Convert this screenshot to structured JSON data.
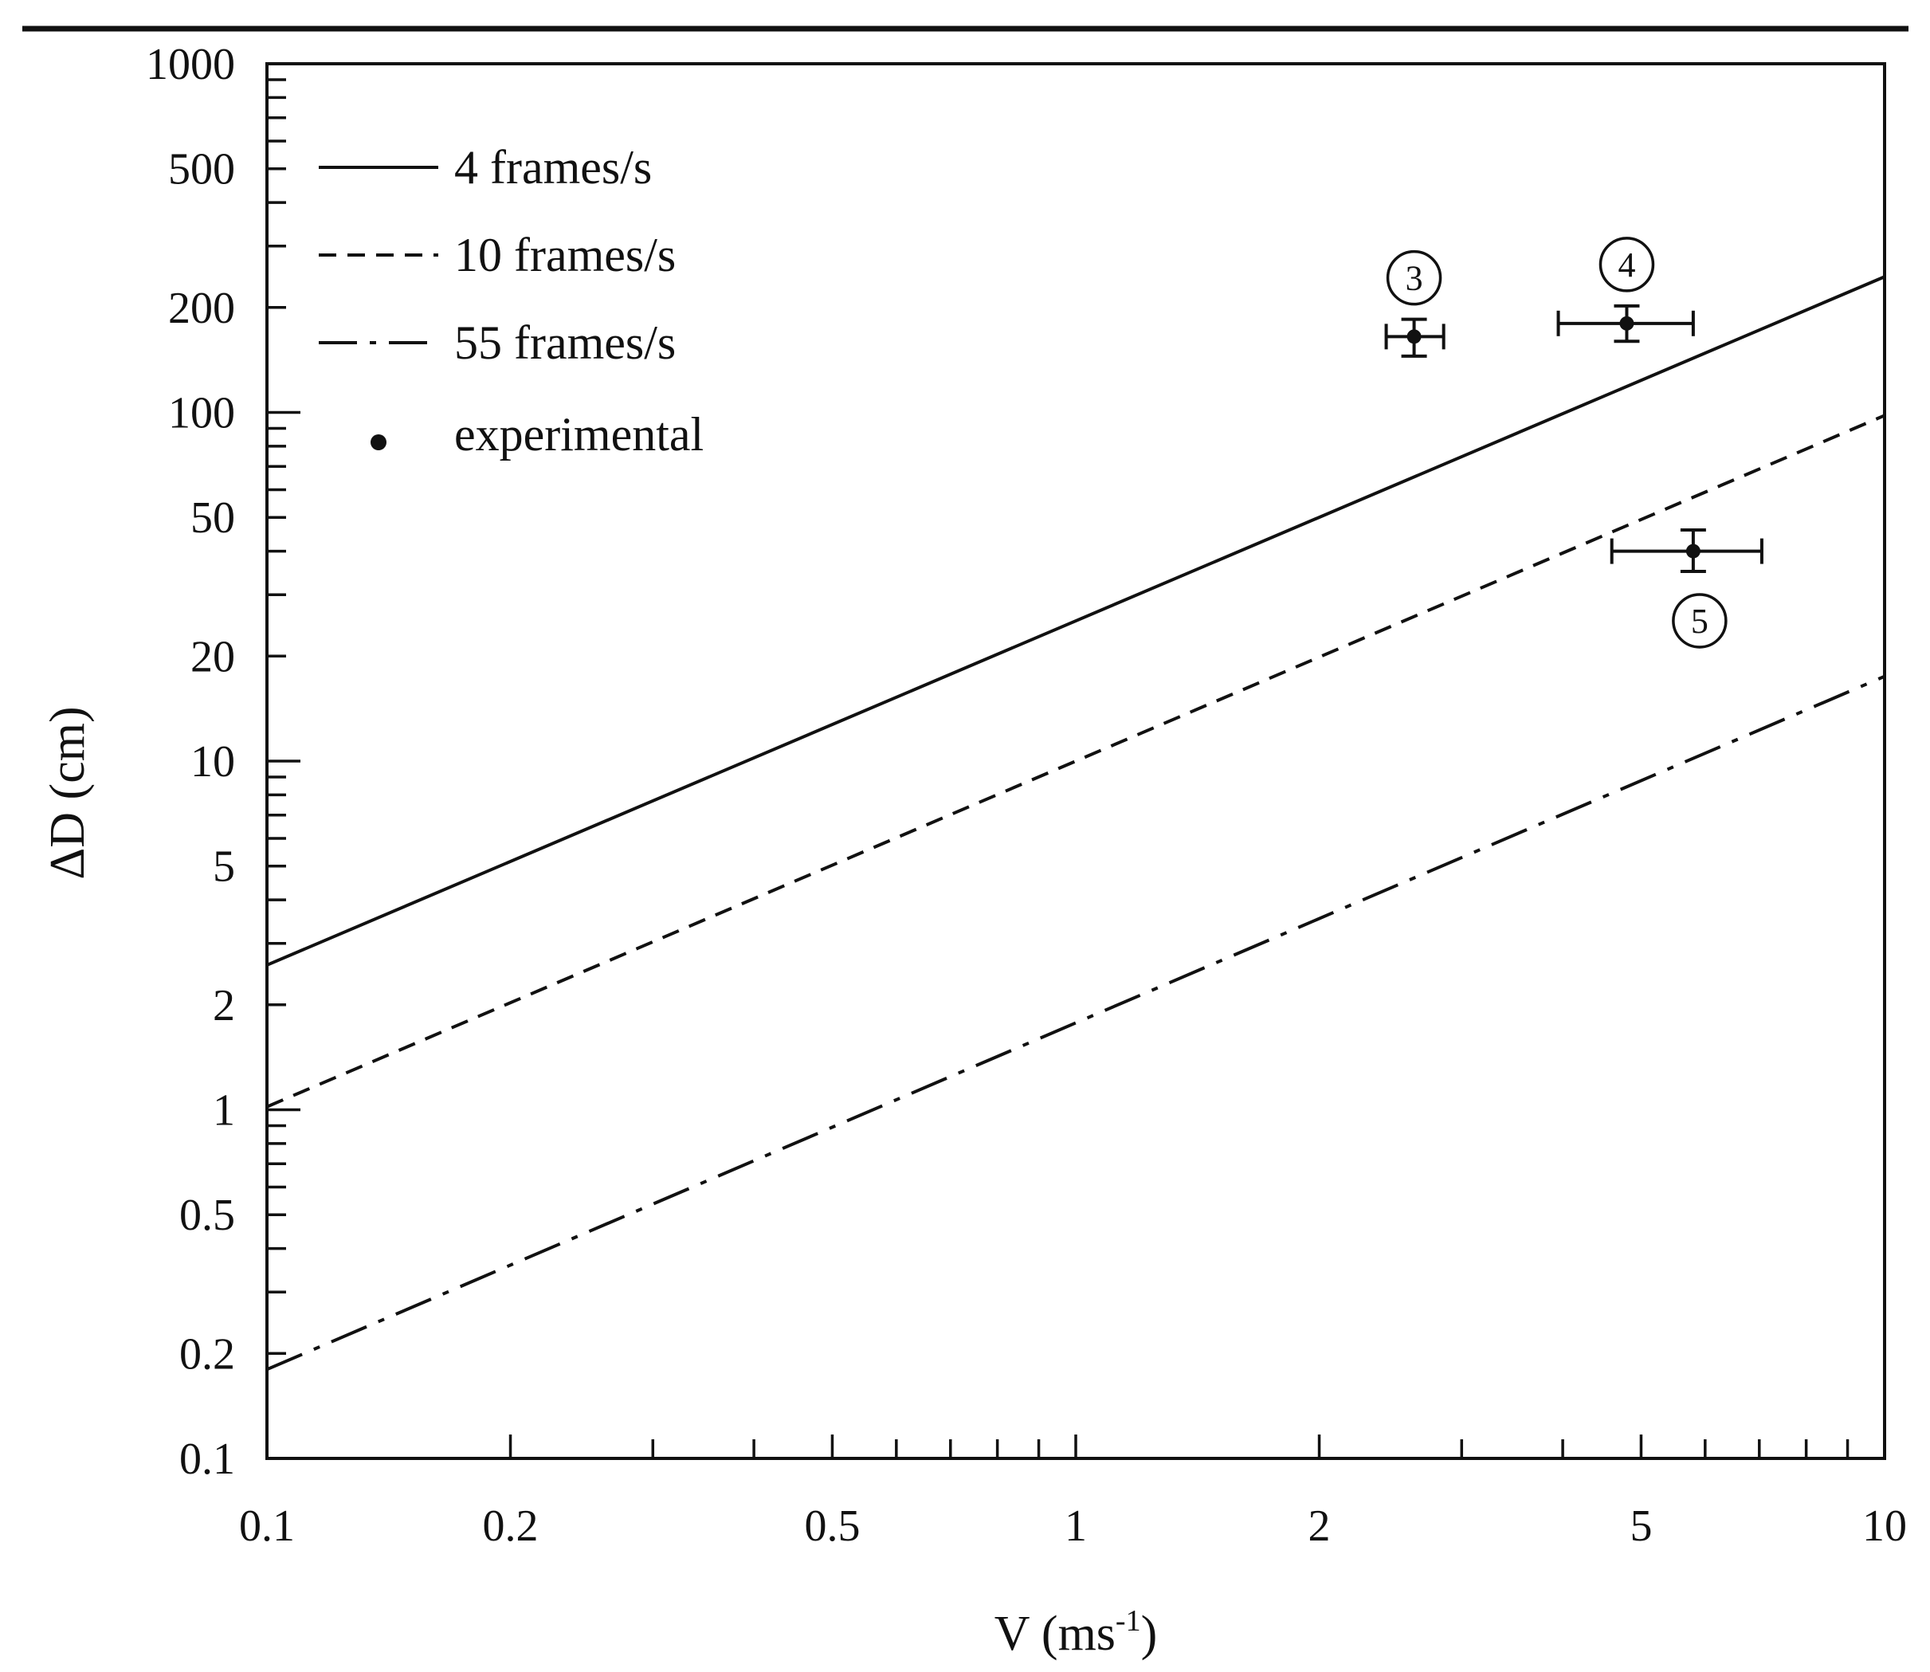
{
  "chart_data": {
    "type": "line",
    "title": "",
    "xlabel": "V (ms",
    "xlabel_sup": "-1",
    "xlabel_close": ")",
    "ylabel": "ΔD (cm)",
    "xscale": "log",
    "yscale": "log",
    "xlim": [
      0.1,
      10
    ],
    "ylim": [
      0.1,
      1000
    ],
    "xticks": [
      0.1,
      0.2,
      0.5,
      1,
      2,
      5,
      10
    ],
    "xtick_labels": [
      "0.1",
      "0.2",
      "0.5",
      "1",
      "2",
      "5",
      "10"
    ],
    "yticks": [
      0.1,
      0.2,
      0.5,
      1,
      2,
      5,
      10,
      20,
      50,
      100,
      200,
      500,
      1000
    ],
    "ytick_labels": [
      "0.1",
      "0.2",
      "0.5",
      "1",
      "2",
      "5",
      "10",
      "20",
      "50",
      "100",
      "200",
      "500",
      "1000"
    ],
    "grid": false,
    "legend_position": "top-left",
    "series": [
      {
        "name": "4 frames/s",
        "style": "solid",
        "x": [
          0.1,
          10
        ],
        "y": [
          2.6,
          245
        ]
      },
      {
        "name": "10 frames/s",
        "style": "dashed",
        "x": [
          0.1,
          10
        ],
        "y": [
          1.02,
          98
        ]
      },
      {
        "name": "55 frames/s",
        "style": "dashdot",
        "x": [
          0.1,
          10
        ],
        "y": [
          0.18,
          17.5
        ]
      }
    ],
    "experimental": {
      "name": "experimental",
      "points": [
        {
          "label": "3",
          "x": 2.62,
          "y": 165,
          "xerr": [
            2.42,
            2.85
          ],
          "yerr": [
            145,
            185
          ],
          "label_pos": "above"
        },
        {
          "label": "4",
          "x": 4.8,
          "y": 180,
          "xerr": [
            3.95,
            5.8
          ],
          "yerr": [
            160,
            202
          ],
          "label_pos": "above"
        },
        {
          "label": "5",
          "x": 5.8,
          "y": 40,
          "xerr": [
            4.6,
            7.05
          ],
          "yerr": [
            35,
            46
          ],
          "label_pos": "below"
        }
      ]
    },
    "colors": {
      "line": "#111111",
      "background": "#ffffff"
    }
  }
}
